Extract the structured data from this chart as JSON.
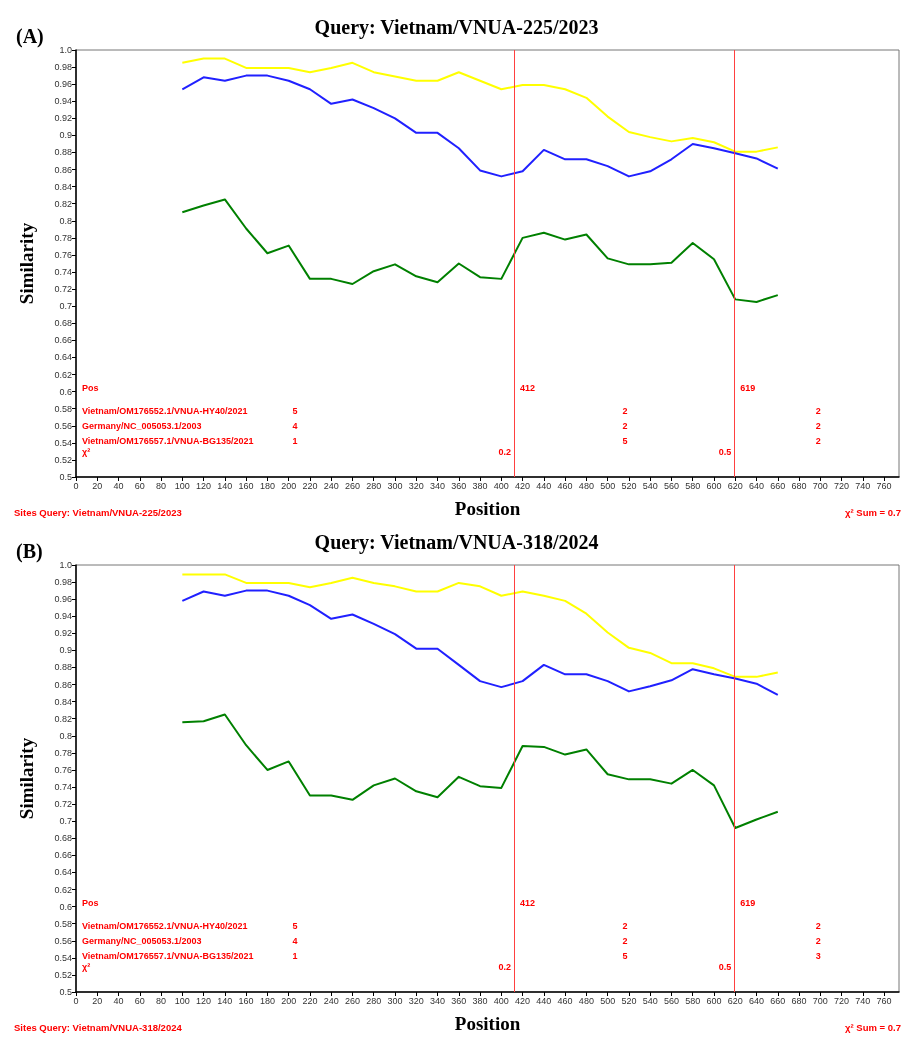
{
  "chart_data": [
    {
      "type": "line",
      "title": "Query: Vietnam/VNUA-225/2023",
      "xlabel": "Position",
      "ylabel": "Similarity",
      "line_style": "solid",
      "grid": false,
      "x": [
        100,
        120,
        140,
        160,
        180,
        200,
        220,
        240,
        260,
        280,
        300,
        320,
        340,
        360,
        380,
        400,
        420,
        440,
        460,
        480,
        500,
        520,
        540,
        560,
        580,
        600,
        620,
        640,
        660
      ],
      "series": [
        {
          "color": "#ffff00",
          "values": [
            0.985,
            0.99,
            0.99,
            0.979,
            0.979,
            0.979,
            0.974,
            0.979,
            0.985,
            0.974,
            0.969,
            0.964,
            0.964,
            0.974,
            0.964,
            0.954,
            0.959,
            0.959,
            0.954,
            0.944,
            0.922,
            0.904,
            0.898,
            0.893,
            0.897,
            0.892,
            0.881,
            0.881,
            0.886
          ]
        },
        {
          "color": "#2020ff",
          "values": [
            0.954,
            0.968,
            0.964,
            0.97,
            0.97,
            0.964,
            0.954,
            0.937,
            0.942,
            0.932,
            0.92,
            0.903,
            0.903,
            0.885,
            0.859,
            0.852,
            0.858,
            0.883,
            0.872,
            0.872,
            0.864,
            0.852,
            0.858,
            0.872,
            0.89,
            0.885,
            0.879,
            0.873,
            0.861
          ]
        },
        {
          "color": "#008000",
          "values": [
            0.81,
            0.818,
            0.825,
            0.791,
            0.762,
            0.771,
            0.732,
            0.732,
            0.726,
            0.741,
            0.749,
            0.735,
            0.728,
            0.75,
            0.734,
            0.732,
            0.78,
            0.786,
            0.778,
            0.784,
            0.756,
            0.749,
            0.749,
            0.751,
            0.774,
            0.755,
            0.708,
            0.705,
            0.713
          ]
        }
      ],
      "xlim": [
        0,
        774
      ],
      "xticks": [
        0,
        20,
        40,
        60,
        80,
        100,
        120,
        140,
        160,
        180,
        200,
        220,
        240,
        260,
        280,
        300,
        320,
        340,
        360,
        380,
        400,
        420,
        440,
        460,
        480,
        500,
        520,
        540,
        560,
        580,
        600,
        620,
        640,
        660,
        680,
        700,
        720,
        740,
        760
      ],
      "ylim": [
        0.5,
        1
      ],
      "yticks": [
        0.5,
        0.52,
        0.54,
        0.56,
        0.58,
        0.6,
        0.62,
        0.64,
        0.66,
        0.68,
        0.7,
        0.72,
        0.74,
        0.76,
        0.78,
        0.8,
        0.82,
        0.84,
        0.86,
        0.88,
        0.9,
        0.92,
        0.94,
        0.96,
        0.98,
        {
          "value": 1,
          "label": "1.0"
        }
      ],
      "ref_lines": [
        {
          "axis": "x",
          "value": 412,
          "label": "412",
          "color": "#ff4040"
        },
        {
          "axis": "x",
          "value": 619,
          "label": "619",
          "color": "#ff4040"
        }
      ],
      "annotations": [
        "(A)",
        "Pos",
        "Vietnam/OM176552.1/VNUA-HY40/2021",
        "Germany/NC_005053.1/2003",
        "Vietnam/OM176557.1/VNUA-BG135/2021",
        "χ²",
        "Sites Query: Vietnam/VNUA-225/2023",
        "χ² Sum = 0.7",
        "5",
        "4",
        "1",
        "2",
        "2",
        "5",
        "2",
        "2",
        "2",
        "0.2",
        "0.5"
      ]
    },
    {
      "type": "line",
      "title": "Query: Vietnam/VNUA-318/2024",
      "xlabel": "Position",
      "ylabel": "Similarity",
      "line_style": "solid",
      "grid": false,
      "x": [
        100,
        120,
        140,
        160,
        180,
        200,
        220,
        240,
        260,
        280,
        300,
        320,
        340,
        360,
        380,
        400,
        420,
        440,
        460,
        480,
        500,
        520,
        540,
        560,
        580,
        600,
        620,
        640,
        660
      ],
      "series": [
        {
          "color": "#ffff00",
          "values": [
            0.989,
            0.989,
            0.989,
            0.979,
            0.979,
            0.979,
            0.974,
            0.979,
            0.985,
            0.979,
            0.975,
            0.969,
            0.969,
            0.979,
            0.975,
            0.964,
            0.969,
            0.964,
            0.958,
            0.943,
            0.921,
            0.903,
            0.897,
            0.885,
            0.885,
            0.879,
            0.869,
            0.869,
            0.874
          ]
        },
        {
          "color": "#2020ff",
          "values": [
            0.958,
            0.969,
            0.964,
            0.97,
            0.97,
            0.964,
            0.953,
            0.937,
            0.942,
            0.931,
            0.919,
            0.902,
            0.902,
            0.883,
            0.864,
            0.857,
            0.864,
            0.883,
            0.872,
            0.872,
            0.864,
            0.852,
            0.858,
            0.865,
            0.878,
            0.872,
            0.867,
            0.861,
            0.848
          ]
        },
        {
          "color": "#008000",
          "values": [
            0.816,
            0.817,
            0.825,
            0.789,
            0.76,
            0.77,
            0.73,
            0.73,
            0.725,
            0.742,
            0.75,
            0.735,
            0.728,
            0.752,
            0.741,
            0.739,
            0.788,
            0.787,
            0.778,
            0.784,
            0.755,
            0.749,
            0.749,
            0.744,
            0.76,
            0.742,
            0.692,
            0.702,
            0.711
          ]
        }
      ],
      "xlim": [
        0,
        774
      ],
      "xticks": [
        0,
        20,
        40,
        60,
        80,
        100,
        120,
        140,
        160,
        180,
        200,
        220,
        240,
        260,
        280,
        300,
        320,
        340,
        360,
        380,
        400,
        420,
        440,
        460,
        480,
        500,
        520,
        540,
        560,
        580,
        600,
        620,
        640,
        660,
        680,
        700,
        720,
        740,
        760
      ],
      "ylim": [
        0.5,
        1
      ],
      "yticks": [
        0.5,
        0.52,
        0.54,
        0.56,
        0.58,
        0.6,
        0.62,
        0.64,
        0.66,
        0.68,
        0.7,
        0.72,
        0.74,
        0.76,
        0.78,
        0.8,
        0.82,
        0.84,
        0.86,
        0.88,
        0.9,
        0.92,
        0.94,
        0.96,
        0.98,
        {
          "value": 1,
          "label": "1.0"
        }
      ],
      "ref_lines": [
        {
          "axis": "x",
          "value": 412,
          "label": "412",
          "color": "#ff4040"
        },
        {
          "axis": "x",
          "value": 619,
          "label": "619",
          "color": "#ff4040"
        }
      ],
      "annotations": [
        "(B)",
        "Pos",
        "Vietnam/OM176552.1/VNUA-HY40/2021",
        "Germany/NC_005053.1/2003",
        "Vietnam/OM176557.1/VNUA-BG135/2021",
        "χ²",
        "Sites Query: Vietnam/VNUA-318/2024",
        "χ² Sum = 0.7",
        "5",
        "4",
        "1",
        "2",
        "2",
        "5",
        "2",
        "2",
        "3",
        "0.2",
        "0.5"
      ]
    }
  ]
}
